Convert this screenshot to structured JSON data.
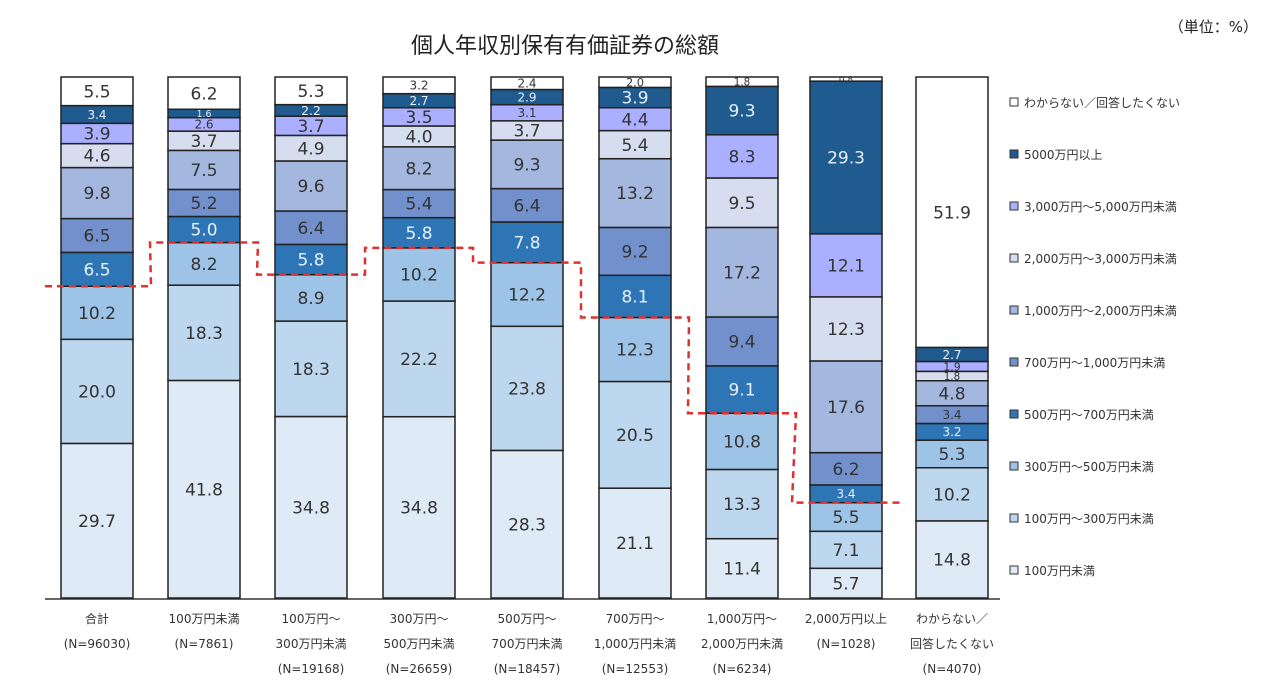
{
  "chart_data": {
    "type": "bar",
    "stacked": true,
    "percent": true,
    "title": "個人年収別保有有価証券の総額",
    "unit_label": "（単位：%）",
    "ylim": [
      0,
      100
    ],
    "grid": false,
    "legend_position": "right",
    "categories": [
      [
        "合計",
        "(N=96030)"
      ],
      [
        "100万円未満",
        "(N=7861)"
      ],
      [
        "100万円～",
        "300万円未満",
        "(N=19168)"
      ],
      [
        "300万円～",
        "500万円未満",
        "(N=26659)"
      ],
      [
        "500万円～",
        "700万円未満",
        "(N=18457)"
      ],
      [
        "700万円～",
        "1,000万円未満",
        "(N=12553)"
      ],
      [
        "1,000万円～",
        "2,000万円未満",
        "(N=6234)"
      ],
      [
        "2,000万円以上",
        "(N=1028)"
      ],
      [
        "わからない／",
        "回答したくない",
        "(N=4070)"
      ]
    ],
    "series": [
      {
        "name": "100万円未満",
        "color": "#deebf7",
        "values": [
          29.7,
          41.8,
          34.8,
          34.8,
          28.3,
          21.1,
          11.4,
          5.7,
          14.8
        ]
      },
      {
        "name": "100万円～300万円未満",
        "color": "#bdd7ee",
        "values": [
          20.0,
          18.3,
          18.3,
          22.2,
          23.8,
          20.5,
          13.3,
          7.1,
          10.2
        ]
      },
      {
        "name": "300万円～500万円未満",
        "color": "#9dc3e6",
        "values": [
          10.2,
          8.2,
          8.9,
          10.2,
          12.2,
          12.3,
          10.8,
          5.5,
          5.3
        ]
      },
      {
        "name": "500万円～700万円未満",
        "color": "#2e75b6",
        "values": [
          6.5,
          5.0,
          5.8,
          5.8,
          7.8,
          8.1,
          9.1,
          3.4,
          3.2
        ]
      },
      {
        "name": "700万円～1,000万円未満",
        "color": "#7190cc",
        "values": [
          6.5,
          5.2,
          6.4,
          5.4,
          6.4,
          9.2,
          9.4,
          6.2,
          3.4
        ]
      },
      {
        "name": "1,000万円～2,000万円未満",
        "color": "#a3b7df",
        "values": [
          9.8,
          7.5,
          9.6,
          8.2,
          9.3,
          13.2,
          17.2,
          17.6,
          4.8
        ]
      },
      {
        "name": "2,000万円～3,000万円未満",
        "color": "#d5ddef",
        "values": [
          4.6,
          3.7,
          4.9,
          4.0,
          3.7,
          5.4,
          9.5,
          12.3,
          1.8
        ]
      },
      {
        "name": "3,000万円～5,000万円未満",
        "color": "#aaafff",
        "values": [
          3.9,
          2.6,
          3.7,
          3.5,
          3.1,
          4.4,
          8.3,
          12.1,
          1.9
        ]
      },
      {
        "name": "5000万円以上",
        "color": "#1f5b8e",
        "values": [
          3.4,
          1.6,
          2.2,
          2.7,
          2.9,
          3.9,
          9.3,
          29.3,
          2.7
        ]
      },
      {
        "name": "わからない／回答したくない",
        "color": "#ffffff",
        "values": [
          5.5,
          6.2,
          5.3,
          3.2,
          2.4,
          2.0,
          1.8,
          0.8,
          51.9
        ]
      }
    ],
    "annotations": [
      {
        "type": "dashed-line",
        "color": "#e03030",
        "meaning": "cumulative share under 500万円"
      }
    ]
  }
}
